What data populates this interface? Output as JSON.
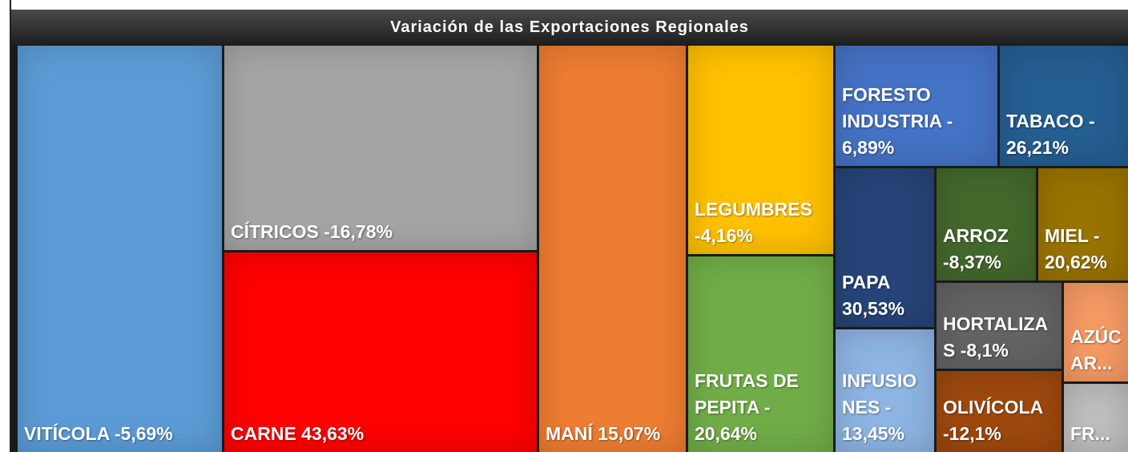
{
  "title": "Variación de las Exportaciones Regionales",
  "tiles": [
    {
      "label": "VITÍCOLA  -5,69%",
      "color": "#5b9bd5"
    },
    {
      "label": "CÍTRICOS  -16,78%",
      "color": "#a5a5a5"
    },
    {
      "label": "CARNE  43,63%",
      "color": "#ff0000"
    },
    {
      "label": "MANÍ 15,07%",
      "color": "#ed7d31"
    },
    {
      "label": "LEGUMBRES -4,16%",
      "color": "#ffc000"
    },
    {
      "label": "FRUTAS DE PEPITA - 20,64%",
      "color": "#70ad47"
    },
    {
      "label": "FORESTO INDUSTRIA - 6,89%",
      "color": "#4472c4"
    },
    {
      "label": "TABACO - 26,21%",
      "color": "#255e91"
    },
    {
      "label": "PAPA 30,53%",
      "color": "#264478"
    },
    {
      "label": "INFUSIONES - 13,45%",
      "color": "#8db4e2"
    },
    {
      "label": "ARROZ -8,37%",
      "color": "#43682b"
    },
    {
      "label": "MIEL - 20,62%",
      "color": "#997300"
    },
    {
      "label": "HORTALIZAS -8,1%",
      "color": "#636363"
    },
    {
      "label": "AZÚCAR...",
      "color": "#f79a64"
    },
    {
      "label": "OLIVÍCOLA -12,1%",
      "color": "#9e480e"
    },
    {
      "label": "FR...",
      "color": "#bfbfbf"
    }
  ]
}
